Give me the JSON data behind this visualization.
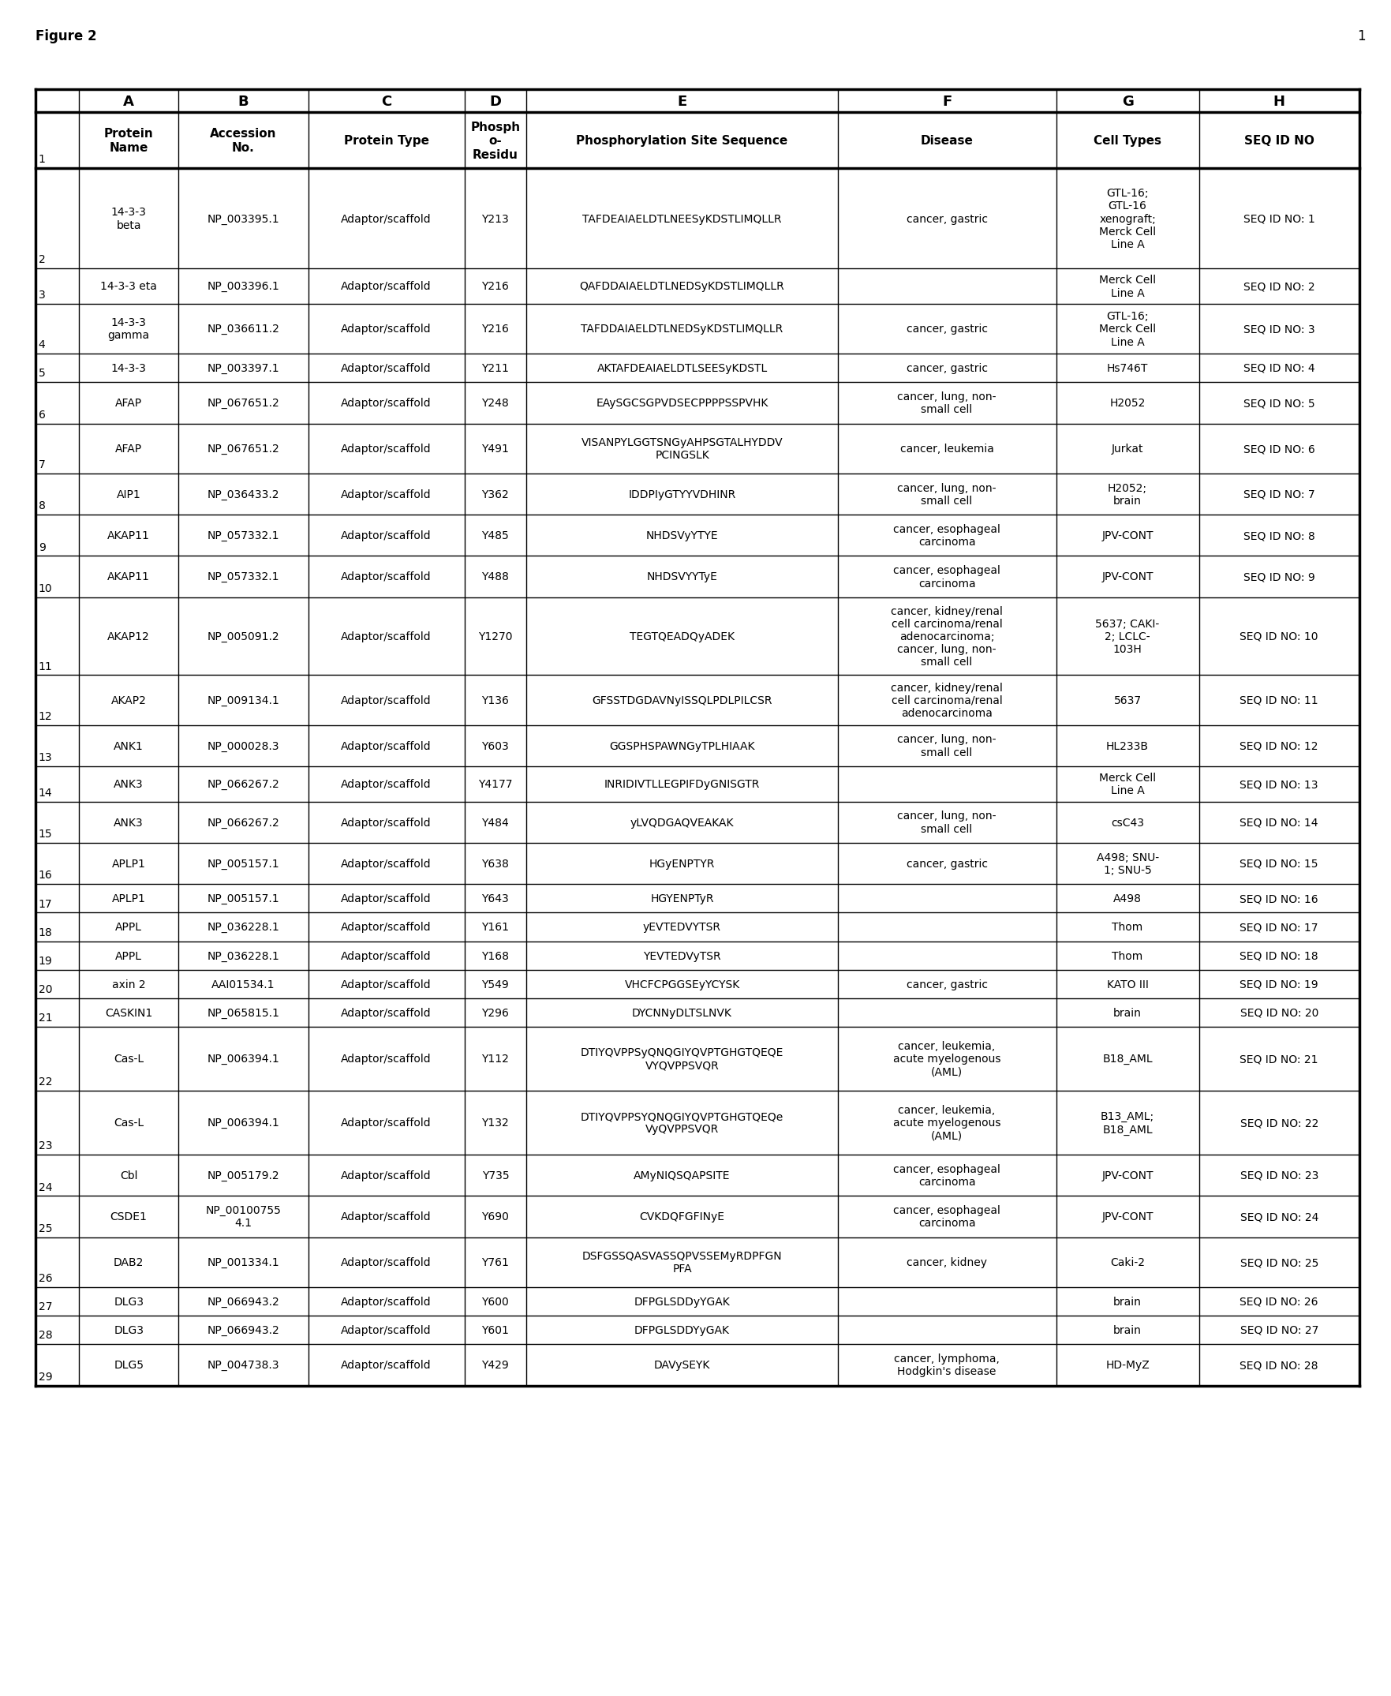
{
  "figure_label": "Figure 2",
  "page_number": "1",
  "rows": [
    {
      "row_num": "2",
      "A": "14-3-3\nbeta",
      "B": "NP_003395.1",
      "C": "Adaptor/scaffold",
      "D": "Y213",
      "E": "TAFDEAIAELDTLNEESyKDSTLIMQLLR",
      "F": "cancer, gastric",
      "G": "GTL-16;\nGTL-16\nxenograft;\nMerck Cell\nLine A",
      "H": "SEQ ID NO: 1"
    },
    {
      "row_num": "3",
      "A": "14-3-3 eta",
      "B": "NP_003396.1",
      "C": "Adaptor/scaffold",
      "D": "Y216",
      "E": "QAFDDAIAELDTLNEDSyKDSTLIMQLLR",
      "F": "",
      "G": "Merck Cell\nLine A",
      "H": "SEQ ID NO: 2"
    },
    {
      "row_num": "4",
      "A": "14-3-3\ngamma",
      "B": "NP_036611.2",
      "C": "Adaptor/scaffold",
      "D": "Y216",
      "E": "TAFDDAIAELDTLNEDSyKDSTLIMQLLR",
      "F": "cancer, gastric",
      "G": "GTL-16;\nMerck Cell\nLine A",
      "H": "SEQ ID NO: 3"
    },
    {
      "row_num": "5",
      "A": "14-3-3",
      "B": "NP_003397.1",
      "C": "Adaptor/scaffold",
      "D": "Y211",
      "E": "AKTAFDEAIAELDTLSEESyKDSTL",
      "F": "cancer, gastric",
      "G": "Hs746T",
      "H": "SEQ ID NO: 4"
    },
    {
      "row_num": "6",
      "A": "AFAP",
      "B": "NP_067651.2",
      "C": "Adaptor/scaffold",
      "D": "Y248",
      "E": "EAySGCSGPVDSECPPPPSSPVHK",
      "F": "cancer, lung, non-\nsmall cell",
      "G": "H2052",
      "H": "SEQ ID NO: 5"
    },
    {
      "row_num": "7",
      "A": "AFAP",
      "B": "NP_067651.2",
      "C": "Adaptor/scaffold",
      "D": "Y491",
      "E": "VISANPYLGGTSNGyAHPSGTALHYDDV\nPCINGSLK",
      "F": "cancer, leukemia",
      "G": "Jurkat",
      "H": "SEQ ID NO: 6"
    },
    {
      "row_num": "8",
      "A": "AIP1",
      "B": "NP_036433.2",
      "C": "Adaptor/scaffold",
      "D": "Y362",
      "E": "IDDPIyGTYYVDHINR",
      "F": "cancer, lung, non-\nsmall cell",
      "G": "H2052;\nbrain",
      "H": "SEQ ID NO: 7"
    },
    {
      "row_num": "9",
      "A": "AKAP11",
      "B": "NP_057332.1",
      "C": "Adaptor/scaffold",
      "D": "Y485",
      "E": "NHDSVyYTYE",
      "F": "cancer, esophageal\ncarcinoma",
      "G": "JPV-CONT",
      "H": "SEQ ID NO: 8"
    },
    {
      "row_num": "10",
      "A": "AKAP11",
      "B": "NP_057332.1",
      "C": "Adaptor/scaffold",
      "D": "Y488",
      "E": "NHDSVYYTyE",
      "F": "cancer, esophageal\ncarcinoma",
      "G": "JPV-CONT",
      "H": "SEQ ID NO: 9"
    },
    {
      "row_num": "11",
      "A": "AKAP12",
      "B": "NP_005091.2",
      "C": "Adaptor/scaffold",
      "D": "Y1270",
      "E": "TEGTQEADQyADEK",
      "F": "cancer, kidney/renal\ncell carcinoma/renal\nadenocarcinoma;\ncancer, lung, non-\nsmall cell",
      "G": "5637; CAKI-\n2; LCLC-\n103H",
      "H": "SEQ ID NO: 10"
    },
    {
      "row_num": "12",
      "A": "AKAP2",
      "B": "NP_009134.1",
      "C": "Adaptor/scaffold",
      "D": "Y136",
      "E": "GFSSTDGDAVNyISSQLPDLPILCSR",
      "F": "cancer, kidney/renal\ncell carcinoma/renal\nadenocarcinoma",
      "G": "5637",
      "H": "SEQ ID NO: 11"
    },
    {
      "row_num": "13",
      "A": "ANK1",
      "B": "NP_000028.3",
      "C": "Adaptor/scaffold",
      "D": "Y603",
      "E": "GGSPHSPAWNGyTPLHIAAK",
      "F": "cancer, lung, non-\nsmall cell",
      "G": "HL233B",
      "H": "SEQ ID NO: 12"
    },
    {
      "row_num": "14",
      "A": "ANK3",
      "B": "NP_066267.2",
      "C": "Adaptor/scaffold",
      "D": "Y4177",
      "E": "INRIDIVTLLEGPIFDyGNISGTR",
      "F": "",
      "G": "Merck Cell\nLine A",
      "H": "SEQ ID NO: 13"
    },
    {
      "row_num": "15",
      "A": "ANK3",
      "B": "NP_066267.2",
      "C": "Adaptor/scaffold",
      "D": "Y484",
      "E": "yLVQDGAQVEAKAK",
      "F": "cancer, lung, non-\nsmall cell",
      "G": "csC43",
      "H": "SEQ ID NO: 14"
    },
    {
      "row_num": "16",
      "A": "APLP1",
      "B": "NP_005157.1",
      "C": "Adaptor/scaffold",
      "D": "Y638",
      "E": "HGyENPTYR",
      "F": "cancer, gastric",
      "G": "A498; SNU-\n1; SNU-5",
      "H": "SEQ ID NO: 15"
    },
    {
      "row_num": "17",
      "A": "APLP1",
      "B": "NP_005157.1",
      "C": "Adaptor/scaffold",
      "D": "Y643",
      "E": "HGYENPTyR",
      "F": "",
      "G": "A498",
      "H": "SEQ ID NO: 16"
    },
    {
      "row_num": "18",
      "A": "APPL",
      "B": "NP_036228.1",
      "C": "Adaptor/scaffold",
      "D": "Y161",
      "E": "yEVTEDVYTSR",
      "F": "",
      "G": "Thom",
      "H": "SEQ ID NO: 17"
    },
    {
      "row_num": "19",
      "A": "APPL",
      "B": "NP_036228.1",
      "C": "Adaptor/scaffold",
      "D": "Y168",
      "E": "YEVTEDVyTSR",
      "F": "",
      "G": "Thom",
      "H": "SEQ ID NO: 18"
    },
    {
      "row_num": "20",
      "A": "axin 2",
      "B": "AAI01534.1",
      "C": "Adaptor/scaffold",
      "D": "Y549",
      "E": "VHCFCPGGSEyYCYSK",
      "F": "cancer, gastric",
      "G": "KATO III",
      "H": "SEQ ID NO: 19"
    },
    {
      "row_num": "21",
      "A": "CASKIN1",
      "B": "NP_065815.1",
      "C": "Adaptor/scaffold",
      "D": "Y296",
      "E": "DYCNNyDLTSLNVK",
      "F": "",
      "G": "brain",
      "H": "SEQ ID NO: 20"
    },
    {
      "row_num": "22",
      "A": "Cas-L",
      "B": "NP_006394.1",
      "C": "Adaptor/scaffold",
      "D": "Y112",
      "E": "DTIYQVPPSyQNQGIYQVPTGHGTQEQE\nVYQVPPSVQR",
      "F": "cancer, leukemia,\nacute myelogenous\n(AML)",
      "G": "B18_AML",
      "H": "SEQ ID NO: 21"
    },
    {
      "row_num": "23",
      "A": "Cas-L",
      "B": "NP_006394.1",
      "C": "Adaptor/scaffold",
      "D": "Y132",
      "E": "DTIYQVPPSYQNQGIYQVPTGHGTQEQe\nVyQVPPSVQR",
      "F": "cancer, leukemia,\nacute myelogenous\n(AML)",
      "G": "B13_AML;\nB18_AML",
      "H": "SEQ ID NO: 22"
    },
    {
      "row_num": "24",
      "A": "Cbl",
      "B": "NP_005179.2",
      "C": "Adaptor/scaffold",
      "D": "Y735",
      "E": "AMyNIQSQAPSITE",
      "F": "cancer, esophageal\ncarcinoma",
      "G": "JPV-CONT",
      "H": "SEQ ID NO: 23"
    },
    {
      "row_num": "25",
      "A": "CSDE1",
      "B": "NP_00100755\n4.1",
      "C": "Adaptor/scaffold",
      "D": "Y690",
      "E": "CVKDQFGFINyE",
      "F": "cancer, esophageal\ncarcinoma",
      "G": "JPV-CONT",
      "H": "SEQ ID NO: 24"
    },
    {
      "row_num": "26",
      "A": "DAB2",
      "B": "NP_001334.1",
      "C": "Adaptor/scaffold",
      "D": "Y761",
      "E": "DSFGSSQASVASSQPVSSEMyRDPFGN\nPFA",
      "F": "cancer, kidney",
      "G": "Caki-2",
      "H": "SEQ ID NO: 25"
    },
    {
      "row_num": "27",
      "A": "DLG3",
      "B": "NP_066943.2",
      "C": "Adaptor/scaffold",
      "D": "Y600",
      "E": "DFPGLSDDyYGAK",
      "F": "",
      "G": "brain",
      "H": "SEQ ID NO: 26"
    },
    {
      "row_num": "28",
      "A": "DLG3",
      "B": "NP_066943.2",
      "C": "Adaptor/scaffold",
      "D": "Y601",
      "E": "DFPGLSDDYyGAK",
      "F": "",
      "G": "brain",
      "H": "SEQ ID NO: 27"
    },
    {
      "row_num": "29",
      "A": "DLG5",
      "B": "NP_004738.3",
      "C": "Adaptor/scaffold",
      "D": "Y429",
      "E": "DAVySEYK",
      "F": "cancer, lymphoma,\nHodgkin's disease",
      "G": "HD-MyZ",
      "H": "SEQ ID NO: 28"
    }
  ],
  "background_color": "#ffffff",
  "border_color": "#000000",
  "text_color": "#000000"
}
